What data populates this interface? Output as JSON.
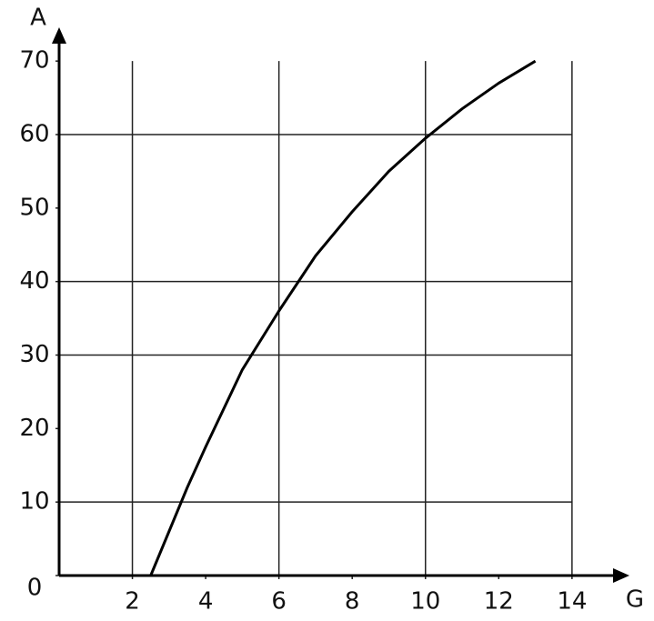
{
  "chart_data": {
    "type": "line",
    "xlabel": "G",
    "ylabel": "A",
    "x": [
      2.5,
      3,
      3.5,
      4,
      5,
      6,
      7,
      8,
      9,
      10,
      11,
      12,
      13
    ],
    "series": [
      {
        "name": "A",
        "color": "#000000",
        "values": [
          0,
          6,
          12,
          17.5,
          28,
          36,
          43.5,
          49.5,
          55,
          59.5,
          63.5,
          67,
          70
        ]
      }
    ],
    "xlim": [
      0,
      14.5
    ],
    "ylim": [
      0,
      72
    ],
    "xticks": [
      2,
      4,
      6,
      8,
      10,
      12,
      14
    ],
    "yticks": [
      0,
      10,
      20,
      30,
      40,
      50,
      60,
      70
    ],
    "xgrid": [
      2,
      6,
      10,
      14
    ],
    "ygrid": [
      10,
      30,
      40,
      60
    ]
  }
}
